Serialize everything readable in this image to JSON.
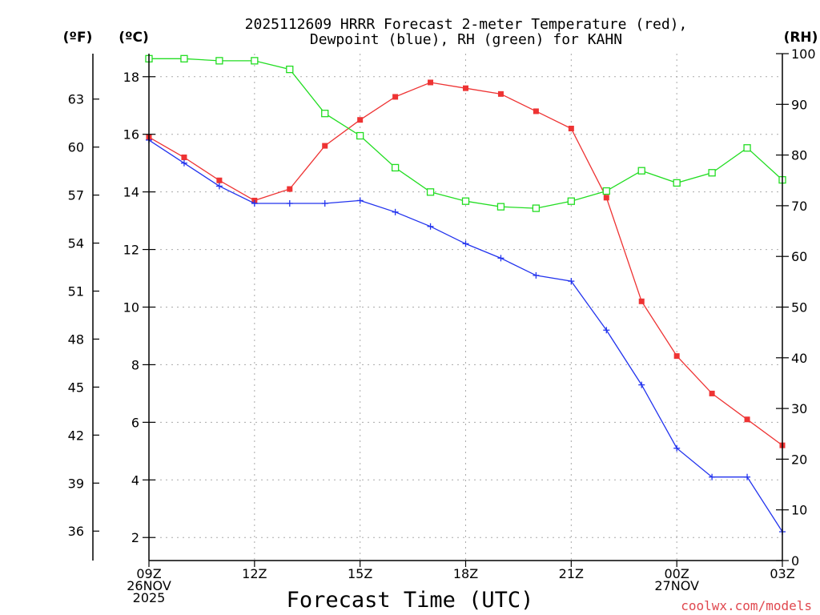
{
  "chart_data": {
    "type": "line",
    "title_line1": "2025112609 HRRR Forecast 2-meter Temperature (red),",
    "title_line2": "Dewpoint (blue), RH (green) for KAHN",
    "xlabel": "Forecast Time (UTC)",
    "credit": "coolwx.com/models",
    "axis_labels": {
      "f": "(ºF)",
      "c": "(ºC)",
      "rh": "(RH)"
    },
    "x_range": [
      0,
      18
    ],
    "x_ticks": [
      {
        "x": 0,
        "lines": [
          "09Z",
          "26NOV",
          "2025"
        ]
      },
      {
        "x": 3,
        "lines": [
          "12Z"
        ]
      },
      {
        "x": 6,
        "lines": [
          "15Z"
        ]
      },
      {
        "x": 9,
        "lines": [
          "18Z"
        ]
      },
      {
        "x": 12,
        "lines": [
          "21Z"
        ]
      },
      {
        "x": 15,
        "lines": [
          "00Z",
          "27NOV"
        ]
      },
      {
        "x": 18,
        "lines": [
          "03Z"
        ]
      }
    ],
    "y_c_range": [
      1.2,
      18.8
    ],
    "y_c_ticks": [
      "2",
      "4",
      "6",
      "8",
      "10",
      "12",
      "14",
      "16",
      "18"
    ],
    "y_f_ticks": [
      "36",
      "39",
      "42",
      "45",
      "48",
      "51",
      "54",
      "57",
      "60",
      "63"
    ],
    "y_rh_range": [
      0,
      100
    ],
    "y_rh_ticks": [
      "0",
      "10",
      "20",
      "30",
      "40",
      "50",
      "60",
      "70",
      "80",
      "90",
      "100"
    ],
    "colors": {
      "temperature": "#ee3333",
      "dewpoint": "#2233ee",
      "rh": "#22dd22"
    },
    "series": [
      {
        "name": "Temperature (°C)",
        "color": "#ee3333",
        "marker": "filled-square",
        "axis": "c",
        "values": [
          15.9,
          15.2,
          14.4,
          13.7,
          14.1,
          15.6,
          16.5,
          17.3,
          17.8,
          17.6,
          17.4,
          16.8,
          16.2,
          13.8,
          10.2,
          8.3,
          7.0,
          6.1,
          5.2
        ]
      },
      {
        "name": "Dewpoint (°C)",
        "color": "#2233ee",
        "marker": "plus",
        "axis": "c",
        "values": [
          15.8,
          15.0,
          14.2,
          13.6,
          13.6,
          13.6,
          13.7,
          13.3,
          12.8,
          12.2,
          11.7,
          11.1,
          10.9,
          9.2,
          7.3,
          5.1,
          4.1,
          4.1,
          2.2
        ]
      },
      {
        "name": "RH (%)",
        "color": "#22dd22",
        "marker": "open-square",
        "axis": "rh",
        "values": [
          99.0,
          99.0,
          98.6,
          98.6,
          96.9,
          88.2,
          83.8,
          77.5,
          72.7,
          70.9,
          69.8,
          69.5,
          70.9,
          72.9,
          76.9,
          74.5,
          76.5,
          81.4,
          75.1
        ]
      }
    ]
  }
}
